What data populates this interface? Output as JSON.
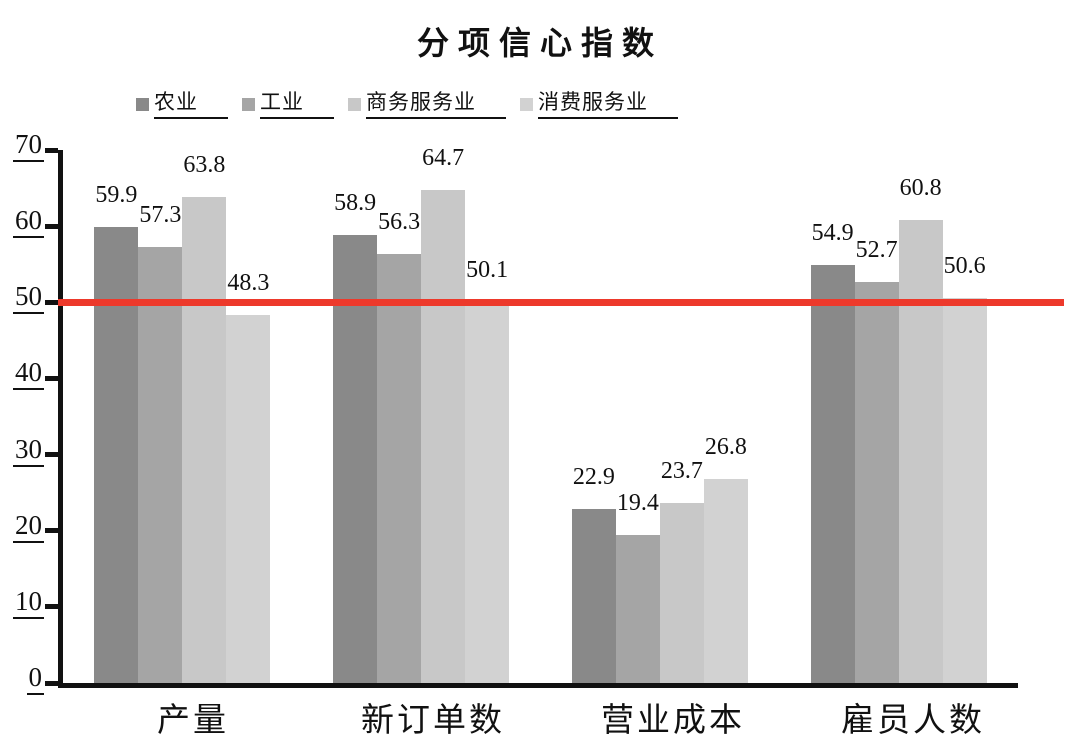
{
  "chart_data": {
    "type": "bar",
    "title": "分项信心指数",
    "categories": [
      "产量",
      "新订单数",
      "营业成本",
      "雇员人数"
    ],
    "series": [
      {
        "name": "农业",
        "color": "#898989",
        "values": [
          59.9,
          58.9,
          22.9,
          54.9
        ]
      },
      {
        "name": "工业",
        "color": "#a5a5a5",
        "values": [
          57.3,
          56.3,
          19.4,
          52.7
        ]
      },
      {
        "name": "商务服务业",
        "color": "#c8c8c8",
        "values": [
          63.8,
          64.7,
          23.7,
          60.8
        ]
      },
      {
        "name": "消费服务业",
        "color": "#d2d2d2",
        "values": [
          48.3,
          50.1,
          26.8,
          50.6
        ]
      }
    ],
    "y_ticks": [
      0,
      10,
      20,
      30,
      40,
      50,
      60,
      70
    ],
    "ylim": [
      0,
      70
    ],
    "reference_line": {
      "value": 50,
      "color": "#ed392b"
    },
    "legend_position": "top",
    "grid": false,
    "axis_color": "#111111",
    "label_decimals": 1
  }
}
